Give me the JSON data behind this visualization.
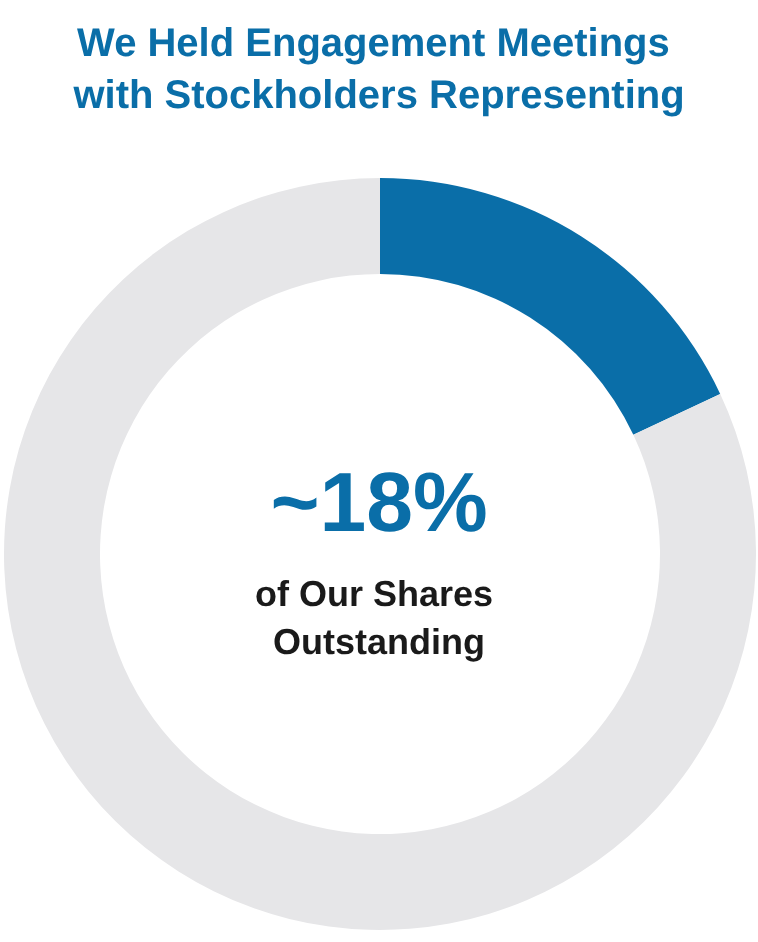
{
  "chart_data": {
    "type": "donut",
    "title": "We Held Engagement Meetings with Stockholders Representing",
    "categories": [
      null,
      null
    ],
    "values": [
      18,
      82
    ],
    "colors": [
      "#0a6ea8",
      "#e6e6e8"
    ],
    "annotations": [
      "~18%",
      "of Our Shares Outstanding"
    ]
  }
}
